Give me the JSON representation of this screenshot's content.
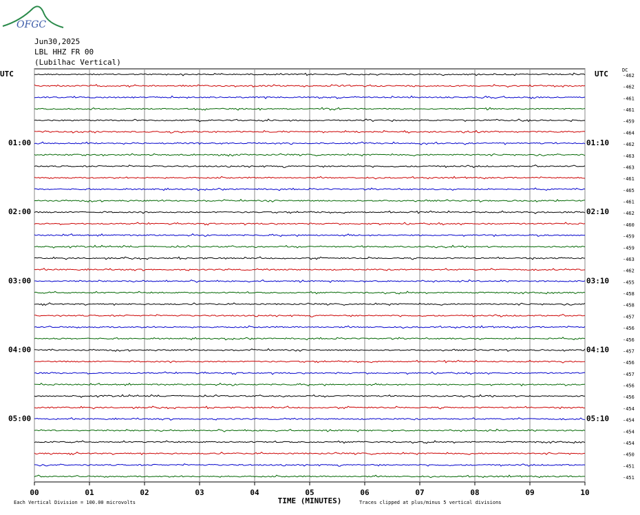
{
  "header": {
    "logo": "OFGC",
    "date": "Jun30,2025",
    "station": "LBL HHZ FR 00",
    "location": "(Lubilhac Vertical)"
  },
  "left_labels": [
    "UTC",
    "01:00",
    "02:00",
    "03:00",
    "04:00",
    "05:00"
  ],
  "right_labels": [
    "UTC",
    "01:10",
    "02:10",
    "03:10",
    "04:10",
    "05:10"
  ],
  "dc": {
    "title": "DC",
    "values": [
      -462,
      -462,
      -461,
      -461,
      -459,
      -464,
      -462,
      -463,
      -463,
      -461,
      -465,
      -461,
      -462,
      -460,
      -459,
      -459,
      -463,
      -462,
      -455,
      -458,
      -458,
      -457,
      -456,
      -456,
      -457,
      -456,
      -457,
      -456,
      -456,
      -454,
      -454,
      -454,
      -454,
      -450,
      -451,
      -451
    ]
  },
  "x_axis": {
    "ticks": [
      "00",
      "01",
      "02",
      "03",
      "04",
      "05",
      "06",
      "07",
      "08",
      "09",
      "10"
    ],
    "label": "TIME (MINUTES)"
  },
  "footer": {
    "scale_note": "Each Vertical Division =  100.00 microvolts",
    "clip_note": "Traces clipped at plus/minus 5 vertical divisions"
  }
}
